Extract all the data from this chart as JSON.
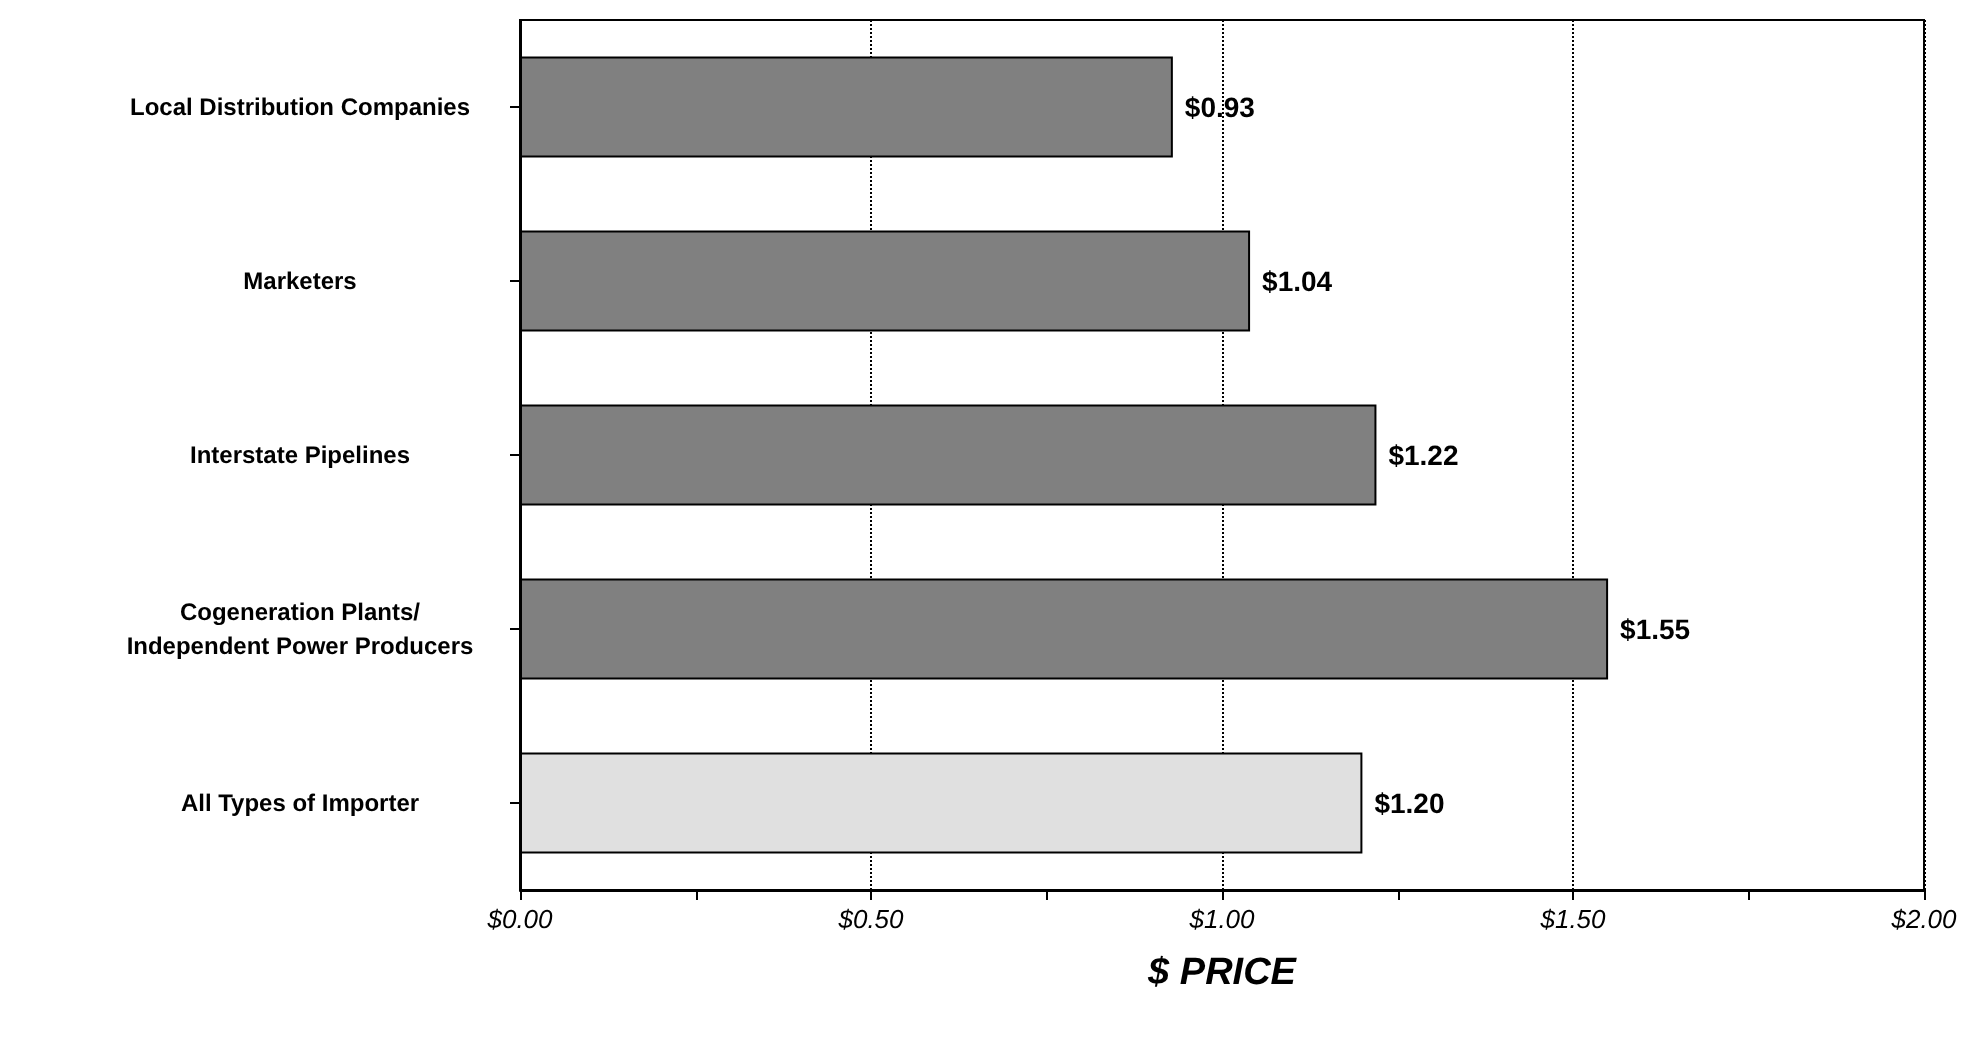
{
  "chart_data": {
    "type": "bar",
    "orientation": "horizontal",
    "xlabel": "$ PRICE",
    "categories": [
      "Local Distribution Companies",
      "Marketers",
      "Interstate Pipelines",
      "Cogeneration Plants/\nIndependent Power Producers",
      "All Types of Importer"
    ],
    "values": [
      0.93,
      1.04,
      1.22,
      1.55,
      1.2
    ],
    "colors": [
      "#808080",
      "#808080",
      "#808080",
      "#808080",
      "#e0e0e0"
    ],
    "value_labels": [
      "$0.93",
      "$1.04",
      "$1.22",
      "$1.55",
      "$1.20"
    ],
    "xlim": [
      0,
      2
    ],
    "xticks": [
      {
        "value": 0,
        "label": "$0.00"
      },
      {
        "value": 0.25,
        "label": null
      },
      {
        "value": 0.5,
        "label": "$0.50"
      },
      {
        "value": 0.75,
        "label": null
      },
      {
        "value": 1,
        "label": "$1.00"
      },
      {
        "value": 1.25,
        "label": null
      },
      {
        "value": 1.5,
        "label": "$1.50"
      },
      {
        "value": 1.75,
        "label": null
      },
      {
        "value": 2,
        "label": "$2.00"
      }
    ],
    "grid": "x"
  }
}
